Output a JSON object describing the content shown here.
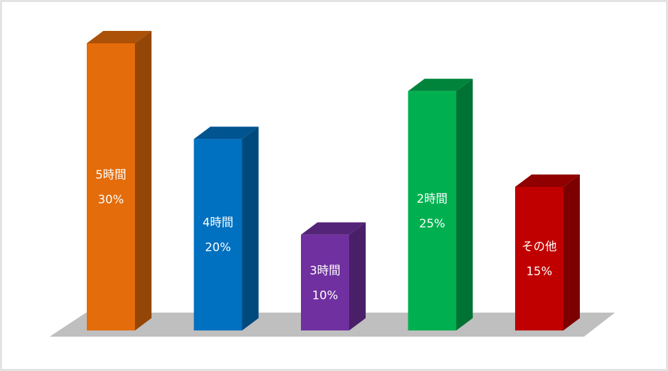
{
  "chart_data": {
    "type": "bar3d",
    "categories": [
      "5時間",
      "4時間",
      "3時間",
      "2時間",
      "その他"
    ],
    "values": [
      30,
      20,
      10,
      25,
      15
    ],
    "value_labels": [
      "30%",
      "20%",
      "10%",
      "25%",
      "15%"
    ],
    "colors": [
      "#e46c0a",
      "#0070c0",
      "#7030a0",
      "#00b050",
      "#c00000"
    ]
  }
}
